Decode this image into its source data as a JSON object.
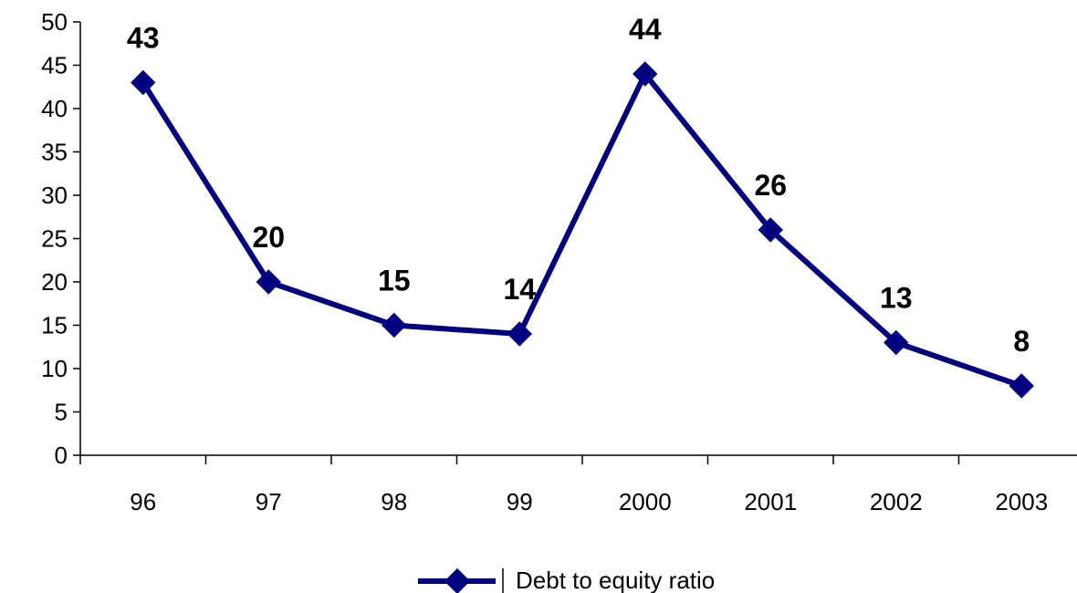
{
  "chart_data": {
    "type": "line",
    "title": "",
    "xlabel": "",
    "ylabel": "",
    "categories": [
      "96",
      "97",
      "98",
      "99",
      "2000",
      "2001",
      "2002",
      "2003"
    ],
    "series": [
      {
        "name": "Debt to equity ratio",
        "values": [
          43,
          20,
          15,
          14,
          44,
          26,
          13,
          8
        ],
        "color": "#000080",
        "marker": "diamond"
      }
    ],
    "ylim": [
      0,
      50
    ],
    "yticks": [
      0,
      5,
      10,
      15,
      20,
      25,
      30,
      35,
      40,
      45,
      50
    ],
    "data_labels": true,
    "grid": false,
    "legend": {
      "position": "bottom"
    }
  }
}
